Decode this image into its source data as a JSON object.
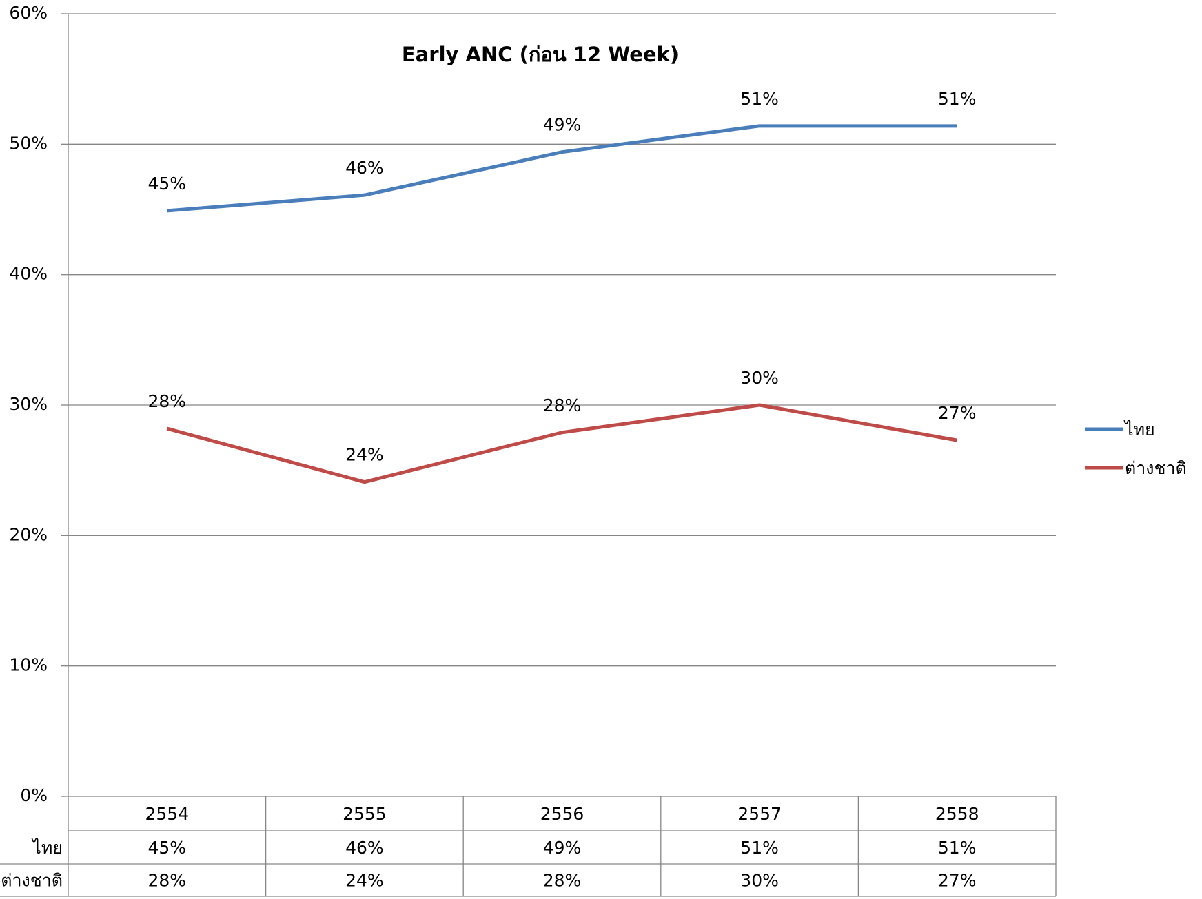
{
  "chart_data": {
    "type": "line",
    "title": "Early ANC (ก่อน 12 Week)",
    "categories": [
      "2554",
      "2555",
      "2556",
      "2557",
      "2558"
    ],
    "series": [
      {
        "name": "ไทย",
        "color": "#4a7ebb",
        "values": [
          44.9,
          46.1,
          49.4,
          51.4,
          51.4
        ],
        "value_labels": [
          "45%",
          "46%",
          "49%",
          "51%",
          "51%"
        ]
      },
      {
        "name": "ต่างชาติ",
        "color": "#be4b48",
        "values": [
          28.2,
          24.1,
          27.9,
          30.0,
          27.3
        ],
        "value_labels": [
          "28%",
          "24%",
          "28%",
          "30%",
          "27%"
        ]
      }
    ],
    "ylim": [
      0,
      60
    ],
    "yticks": [
      {
        "value": 0,
        "label": "0%"
      },
      {
        "value": 10,
        "label": "10%"
      },
      {
        "value": 20,
        "label": "20%"
      },
      {
        "value": 30,
        "label": "30%"
      },
      {
        "value": 40,
        "label": "40%"
      },
      {
        "value": 50,
        "label": "50%"
      },
      {
        "value": 60,
        "label": "60%"
      }
    ],
    "grid": true,
    "legend": "right",
    "data_table": true
  }
}
